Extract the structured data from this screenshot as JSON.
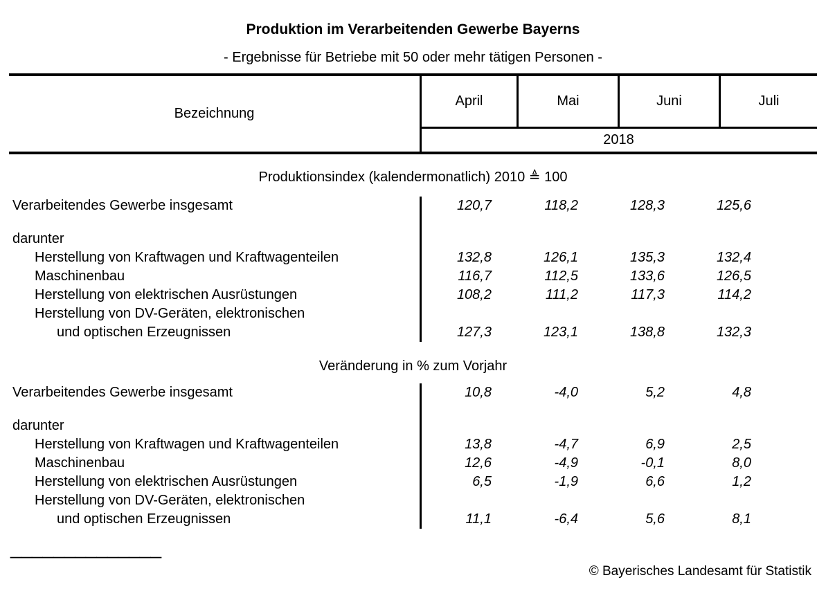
{
  "page": {
    "title": "Produktion im Verarbeitenden Gewerbe Bayerns",
    "subtitle": "- Ergebnisse für Betriebe mit 50 oder mehr tätigen Personen -",
    "footnote_rule": "______________",
    "copyright": "© Bayerisches Landesamt für Statistik",
    "colors": {
      "text": "#000000",
      "background": "#ffffff",
      "rule": "#000000"
    }
  },
  "table": {
    "header": {
      "label_column": "Bezeichnung",
      "months": [
        "April",
        "Mai",
        "Juni",
        "Juli"
      ],
      "year": "2018"
    },
    "sections": [
      {
        "title": "Produktionsindex (kalendermonatlich) 2010 ≜ 100",
        "rows": [
          {
            "label": "Verarbeitendes Gewerbe insgesamt",
            "indent": 0,
            "gap_before": false,
            "values": [
              "120,7",
              "118,2",
              "128,3",
              "125,6"
            ]
          },
          {
            "label": "darunter",
            "indent": 0,
            "gap_before": true,
            "values": []
          },
          {
            "label": "Herstellung von Kraftwagen und Kraftwagenteilen",
            "indent": 1,
            "gap_before": false,
            "values": [
              "132,8",
              "126,1",
              "135,3",
              "132,4"
            ]
          },
          {
            "label": "Maschinenbau",
            "indent": 1,
            "gap_before": false,
            "values": [
              "116,7",
              "112,5",
              "133,6",
              "126,5"
            ]
          },
          {
            "label": "Herstellung von elektrischen Ausrüstungen",
            "indent": 1,
            "gap_before": false,
            "values": [
              "108,2",
              "111,2",
              "117,3",
              "114,2"
            ]
          },
          {
            "label": "Herstellung von DV-Geräten, elektronischen",
            "indent": 1,
            "gap_before": false,
            "values": []
          },
          {
            "label": "und optischen Erzeugnissen",
            "indent": 2,
            "gap_before": false,
            "values": [
              "127,3",
              "123,1",
              "138,8",
              "132,3"
            ]
          }
        ]
      },
      {
        "title": "Veränderung in % zum Vorjahr",
        "rows": [
          {
            "label": "Verarbeitendes Gewerbe insgesamt",
            "indent": 0,
            "gap_before": false,
            "values": [
              "10,8",
              "-4,0",
              "5,2",
              "4,8"
            ]
          },
          {
            "label": "darunter",
            "indent": 0,
            "gap_before": true,
            "values": []
          },
          {
            "label": "Herstellung von Kraftwagen und Kraftwagenteilen",
            "indent": 1,
            "gap_before": false,
            "values": [
              "13,8",
              "-4,7",
              "6,9",
              "2,5"
            ]
          },
          {
            "label": "Maschinenbau",
            "indent": 1,
            "gap_before": false,
            "values": [
              "12,6",
              "-4,9",
              "-0,1",
              "8,0"
            ]
          },
          {
            "label": "Herstellung von elektrischen Ausrüstungen",
            "indent": 1,
            "gap_before": false,
            "values": [
              "6,5",
              "-1,9",
              "6,6",
              "1,2"
            ]
          },
          {
            "label": "Herstellung von DV-Geräten, elektronischen",
            "indent": 1,
            "gap_before": false,
            "values": []
          },
          {
            "label": "und optischen Erzeugnissen",
            "indent": 2,
            "gap_before": false,
            "values": [
              "11,1",
              "-6,4",
              "5,6",
              "8,1"
            ]
          }
        ]
      }
    ]
  }
}
